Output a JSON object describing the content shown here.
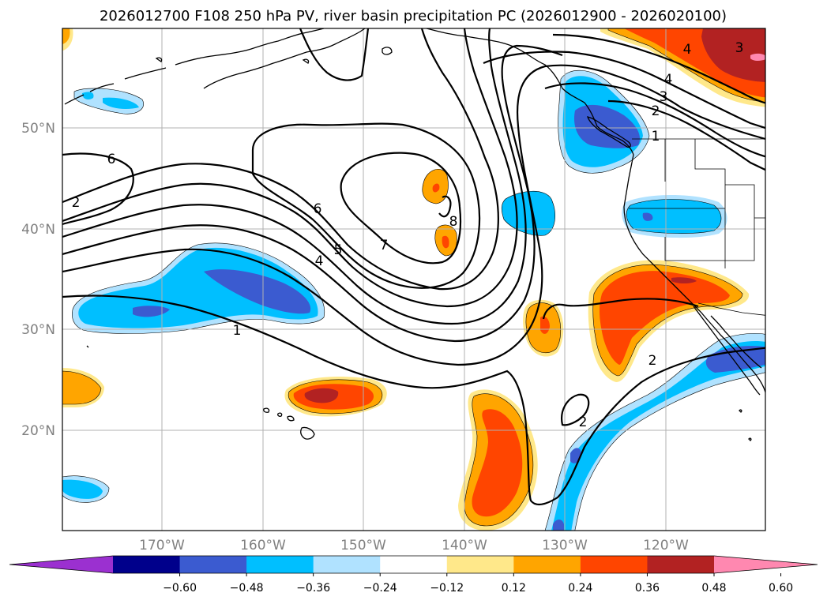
{
  "title": "2026012700 F108 250 hPa PV, river basin precipitation PC (2026012900 - 2026020100)",
  "lat_labels": [
    "50°N",
    "40°N",
    "30°N",
    "20°N"
  ],
  "lon_labels": [
    "170°W",
    "160°W",
    "150°W",
    "140°W",
    "130°W",
    "120°W"
  ],
  "colorbar": {
    "ticks": [
      "−0.60",
      "−0.48",
      "−0.36",
      "−0.24",
      "−0.12",
      "0.12",
      "0.24",
      "0.36",
      "0.48",
      "0.60"
    ],
    "colors": [
      "#9b30d0",
      "#00008b",
      "#3b5bd0",
      "#00bfff",
      "#b0e2ff",
      "#ffffff",
      "#ffe88a",
      "#ffa500",
      "#ff4500",
      "#b22222",
      "#ff88b0"
    ]
  },
  "shading_colors": {
    "neg_weak": "#b0e2ff",
    "neg_mid": "#00bfff",
    "neg_strong": "#3b5bd0",
    "pos_weak": "#ffe88a",
    "pos_mid": "#ffa500",
    "pos_strong": "#ff4500",
    "pos_max": "#b22222",
    "pos_top": "#ff88b0"
  },
  "pv_labels": [
    "6",
    "6",
    "5",
    "4",
    "7",
    "1",
    "8",
    "4",
    "3",
    "2",
    "1",
    "4",
    "3",
    "2",
    "2",
    "2"
  ]
}
